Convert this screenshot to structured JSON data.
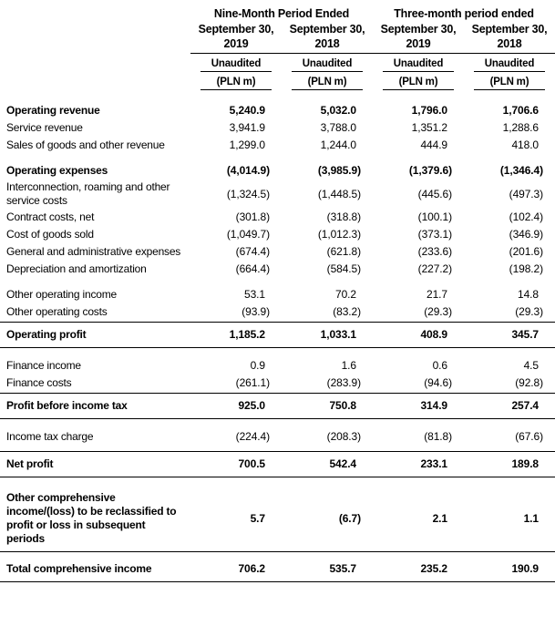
{
  "page": {
    "background_color": "#ffffff",
    "text_color": "#000000",
    "rule_color": "#000000"
  },
  "table": {
    "groups": [
      {
        "label": "Nine-Month Period Ended"
      },
      {
        "label": "Three-month period ended"
      }
    ],
    "columns": [
      {
        "period": "September 30,",
        "year": "2019",
        "audit_status": "Unaudited",
        "unit": "(PLN m)"
      },
      {
        "period": "September 30,",
        "year": "2018",
        "audit_status": "Unaudited",
        "unit": "(PLN m)"
      },
      {
        "period": "September 30,",
        "year": "2019",
        "audit_status": "Unaudited",
        "unit": "(PLN m)"
      },
      {
        "period": "September 30,",
        "year": "2018",
        "audit_status": "Unaudited",
        "unit": "(PLN m)"
      }
    ],
    "rows": [
      {
        "type": "row",
        "bold": true,
        "label": "Operating revenue",
        "values": [
          "5,240.9",
          "5,032.0",
          "1,796.0",
          "1,706.6"
        ]
      },
      {
        "type": "row",
        "bold": false,
        "label": "Service revenue",
        "values": [
          "3,941.9",
          "3,788.0",
          "1,351.2",
          "1,288.6"
        ]
      },
      {
        "type": "row",
        "bold": false,
        "label": "Sales of goods and other revenue",
        "values": [
          "1,299.0",
          "1,244.0",
          "444.9",
          "418.0"
        ]
      },
      {
        "type": "spacer"
      },
      {
        "type": "row",
        "bold": true,
        "label": "Operating expenses",
        "values": [
          "(4,014.9)",
          "(3,985.9)",
          "(1,379.6)",
          "(1,346.4)"
        ]
      },
      {
        "type": "row",
        "bold": false,
        "label": "Interconnection, roaming and other service costs",
        "values": [
          "(1,324.5)",
          "(1,448.5)",
          "(445.6)",
          "(497.3)"
        ]
      },
      {
        "type": "row",
        "bold": false,
        "label": "Contract costs, net",
        "values": [
          "(301.8)",
          "(318.8)",
          "(100.1)",
          "(102.4)"
        ]
      },
      {
        "type": "row",
        "bold": false,
        "label": "Cost of goods sold",
        "values": [
          "(1,049.7)",
          "(1,012.3)",
          "(373.1)",
          "(346.9)"
        ]
      },
      {
        "type": "row",
        "bold": false,
        "label": "General and administrative expenses",
        "values": [
          "(674.4)",
          "(621.8)",
          "(233.6)",
          "(201.6)"
        ]
      },
      {
        "type": "row",
        "bold": false,
        "label": "Depreciation and amortization",
        "values": [
          "(664.4)",
          "(584.5)",
          "(227.2)",
          "(198.2)"
        ]
      },
      {
        "type": "spacer"
      },
      {
        "type": "row",
        "bold": false,
        "label": "Other operating income",
        "values": [
          "53.1",
          "70.2",
          "21.7",
          "14.8"
        ]
      },
      {
        "type": "row",
        "bold": false,
        "label": "Other operating costs",
        "values": [
          "(93.9)",
          "(83.2)",
          "(29.3)",
          "(29.3)"
        ]
      },
      {
        "type": "rule"
      },
      {
        "type": "row",
        "bold": true,
        "spaced": true,
        "label": "Operating profit",
        "values": [
          "1,185.2",
          "1,033.1",
          "408.9",
          "345.7"
        ]
      },
      {
        "type": "rule"
      },
      {
        "type": "spacer"
      },
      {
        "type": "row",
        "bold": false,
        "label": "Finance income",
        "values": [
          "0.9",
          "1.6",
          "0.6",
          "4.5"
        ]
      },
      {
        "type": "row",
        "bold": false,
        "label": "Finance costs",
        "values": [
          "(261.1)",
          "(283.9)",
          "(94.6)",
          "(92.8)"
        ]
      },
      {
        "type": "rule"
      },
      {
        "type": "row",
        "bold": true,
        "spaced": true,
        "label": "Profit before income tax",
        "values": [
          "925.0",
          "750.8",
          "314.9",
          "257.4"
        ]
      },
      {
        "type": "rule"
      },
      {
        "type": "spacer"
      },
      {
        "type": "row",
        "bold": false,
        "label": "Income tax charge",
        "values": [
          "(224.4)",
          "(208.3)",
          "(81.8)",
          "(67.6)"
        ]
      },
      {
        "type": "spacer",
        "small": true
      },
      {
        "type": "rule"
      },
      {
        "type": "row",
        "bold": true,
        "spaced": true,
        "label": "Net profit",
        "values": [
          "700.5",
          "542.4",
          "233.1",
          "189.8"
        ]
      },
      {
        "type": "rule"
      },
      {
        "type": "spacer"
      },
      {
        "type": "row",
        "bold": true,
        "spaced": true,
        "label": "Other comprehensive income/(loss) to be reclassified to profit or loss in subsequent periods",
        "values": [
          "5.7",
          "(6.7)",
          "2.1",
          "1.1"
        ]
      },
      {
        "type": "rule"
      },
      {
        "type": "spacer",
        "small": true
      },
      {
        "type": "row",
        "bold": true,
        "spaced": true,
        "label": "Total comprehensive income",
        "values": [
          "706.2",
          "535.7",
          "235.2",
          "190.9"
        ]
      },
      {
        "type": "rule"
      }
    ]
  }
}
